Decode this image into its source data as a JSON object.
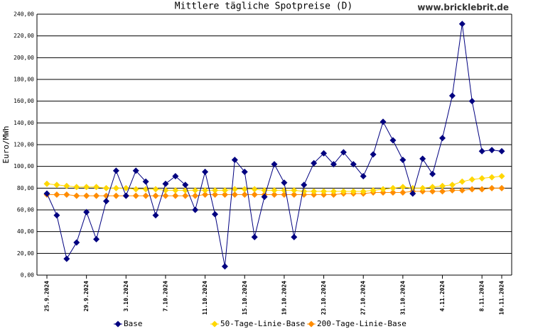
{
  "chart_data": {
    "type": "line",
    "title": "Mittlere tägliche Spotpreise (D)",
    "source": "www.bricklebrit.de",
    "y_label": "Euro/MWh",
    "categories": [
      "25.9.2024",
      null,
      null,
      null,
      "29.9.2024",
      null,
      null,
      null,
      "3.10.2024",
      null,
      null,
      null,
      "7.10.2024",
      null,
      null,
      null,
      "11.10.2024",
      null,
      null,
      null,
      "15.10.2024",
      null,
      null,
      null,
      "19.10.2024",
      null,
      null,
      null,
      "23.10.2024",
      null,
      null,
      null,
      "27.10.2024",
      null,
      null,
      null,
      "31.10.2024",
      null,
      null,
      null,
      "4.11.2024",
      null,
      null,
      null,
      "8.11.2024",
      null,
      "10.11.2024"
    ],
    "series": [
      {
        "name": "Base",
        "color": "#000080",
        "values": [
          75,
          55,
          15,
          30,
          58,
          33,
          68,
          96,
          73,
          96,
          86,
          55,
          84,
          91,
          83,
          60,
          95,
          56,
          8,
          106,
          95,
          35,
          72,
          102,
          85,
          35,
          83,
          103,
          112,
          102,
          113,
          102,
          91,
          111,
          141,
          124,
          106,
          75,
          107,
          93,
          126,
          165,
          231,
          160,
          114,
          115,
          114
        ]
      },
      {
        "name": "50-Tage-Linie-Base",
        "color": "#ffd700",
        "values": [
          84,
          83,
          82,
          81,
          81,
          81,
          80,
          80,
          80,
          79,
          79,
          79,
          78,
          78,
          78,
          78,
          78,
          78,
          78,
          79,
          79,
          79,
          78,
          78,
          78,
          78,
          77,
          77,
          77,
          77,
          77,
          77,
          77,
          78,
          79,
          80,
          81,
          80,
          80,
          81,
          82,
          83,
          86,
          88,
          89,
          90,
          91
        ]
      },
      {
        "name": "200-Tage-Linie-Base",
        "color": "#ff8c00",
        "values": [
          74,
          74,
          74,
          73,
          73,
          73,
          73,
          73,
          73,
          73,
          73,
          73,
          73,
          73,
          73,
          73,
          74,
          74,
          74,
          74,
          74,
          74,
          74,
          74,
          74,
          74,
          74,
          74,
          74,
          74,
          75,
          75,
          75,
          76,
          76,
          76,
          76,
          77,
          77,
          77,
          77,
          78,
          78,
          79,
          79,
          80,
          80
        ]
      }
    ],
    "ylim": [
      0,
      240
    ],
    "yticks": [
      {
        "value": 0,
        "label": "0,00"
      },
      {
        "value": 20,
        "label": "20,00"
      },
      {
        "value": 40,
        "label": "40,00"
      },
      {
        "value": 60,
        "label": "60,00"
      },
      {
        "value": 80,
        "label": "80,00"
      },
      {
        "value": 100,
        "label": "100,00"
      },
      {
        "value": 120,
        "label": "120,00"
      },
      {
        "value": 140,
        "label": "140,00"
      },
      {
        "value": 160,
        "label": "160,00"
      },
      {
        "value": 180,
        "label": "180,00"
      },
      {
        "value": 200,
        "label": "200,00"
      },
      {
        "value": 220,
        "label": "220,00"
      },
      {
        "value": 240,
        "label": "240,00"
      }
    ],
    "grid": true
  }
}
